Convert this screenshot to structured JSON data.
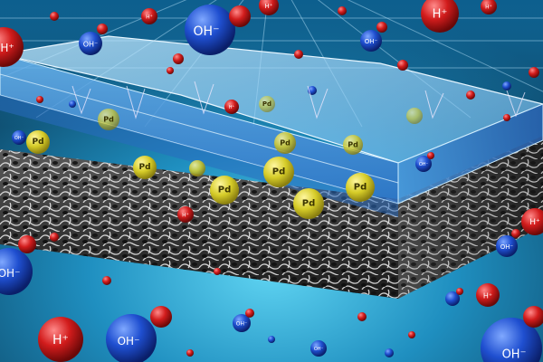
{
  "labels": {
    "hydroxide": "OH⁻",
    "proton": "H⁺",
    "palladium": "Pd"
  },
  "colors": {
    "background_deep": "#0a3c5a",
    "background_glow": "#3fc3e8",
    "membrane_blue": "#3a8fd8",
    "membrane_edge": "#bfe6ff",
    "carbon_foam_dark": "#1a1a1a",
    "carbon_foam_light": "#d8d8d8",
    "pd_gold": "#d6cc28",
    "hydroxide_blue": "#1f4fd0",
    "oxygen_red": "#d21c1c",
    "proton_red": "#cc1a1a"
  }
}
